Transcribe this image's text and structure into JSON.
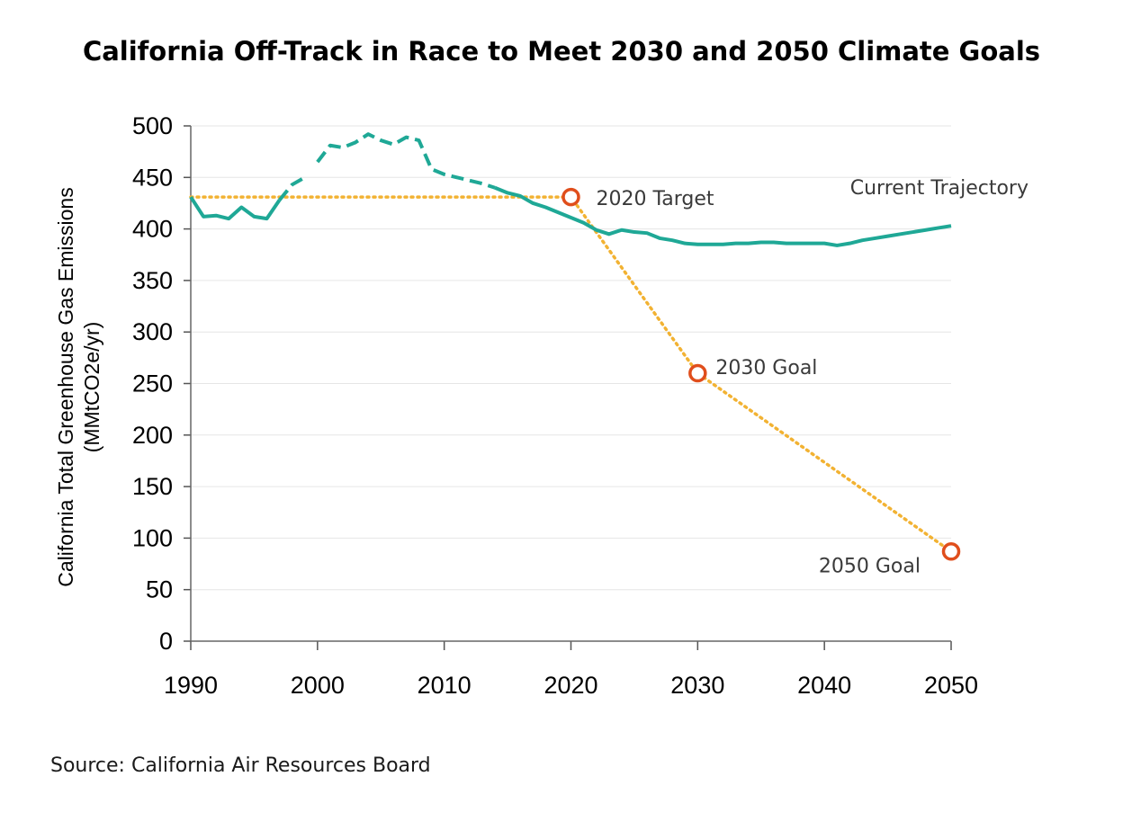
{
  "title": "California Off-Track in Race to Meet 2030 and 2050 Climate Goals",
  "source": "Source: California Air Resources Board",
  "colors": {
    "trajectory": "#1fa896",
    "goals_line": "#f2b232",
    "goal_marker": "#e04e1c",
    "grid": "#e6e6e6"
  },
  "chart_data": {
    "type": "line",
    "xlabel": "",
    "ylabel_lines": [
      "California Total Greenhouse Gas Emissions",
      "(MMtCO2e/yr)"
    ],
    "xlim": [
      1990,
      2050
    ],
    "ylim": [
      0,
      500
    ],
    "xticks": [
      1990,
      2000,
      2010,
      2020,
      2030,
      2040,
      2050
    ],
    "yticks": [
      0,
      50,
      100,
      150,
      200,
      250,
      300,
      350,
      400,
      450,
      500
    ],
    "grid": "horizontal",
    "series": [
      {
        "name": "Current Trajectory",
        "style": "solid/dashed",
        "segments": [
          {
            "style": "solid",
            "points": [
              [
                1990,
                431
              ],
              [
                1991,
                412
              ],
              [
                1992,
                413
              ],
              [
                1993,
                410
              ],
              [
                1994,
                421
              ],
              [
                1995,
                412
              ],
              [
                1996,
                410
              ],
              [
                1997,
                428
              ]
            ]
          },
          {
            "style": "dashed",
            "points": [
              [
                1997,
                428
              ],
              [
                1998,
                443
              ],
              [
                1999,
                450
              ]
            ]
          },
          {
            "style": "dashed",
            "points": [
              [
                2000,
                465
              ],
              [
                2001,
                481
              ],
              [
                2002,
                479
              ],
              [
                2003,
                484
              ],
              [
                2004,
                492
              ],
              [
                2005,
                486
              ],
              [
                2006,
                482
              ],
              [
                2007,
                489
              ],
              [
                2008,
                486
              ],
              [
                2009,
                458
              ],
              [
                2010,
                453
              ],
              [
                2011,
                450
              ],
              [
                2012,
                447
              ],
              [
                2013,
                444
              ],
              [
                2014,
                440
              ]
            ]
          },
          {
            "style": "solid",
            "points": [
              [
                2014,
                440
              ],
              [
                2015,
                435
              ],
              [
                2016,
                432
              ],
              [
                2017,
                425
              ],
              [
                2018,
                421
              ],
              [
                2019,
                416
              ],
              [
                2020,
                411
              ],
              [
                2021,
                406
              ],
              [
                2022,
                399
              ],
              [
                2023,
                395
              ],
              [
                2024,
                399
              ],
              [
                2025,
                397
              ],
              [
                2026,
                396
              ],
              [
                2027,
                391
              ],
              [
                2028,
                389
              ],
              [
                2029,
                386
              ],
              [
                2030,
                385
              ],
              [
                2031,
                385
              ],
              [
                2032,
                385
              ],
              [
                2033,
                386
              ],
              [
                2034,
                386
              ],
              [
                2035,
                387
              ],
              [
                2036,
                387
              ],
              [
                2037,
                386
              ],
              [
                2038,
                386
              ],
              [
                2039,
                386
              ],
              [
                2040,
                386
              ],
              [
                2041,
                384
              ],
              [
                2042,
                386
              ],
              [
                2043,
                389
              ],
              [
                2044,
                391
              ],
              [
                2045,
                393
              ],
              [
                2046,
                395
              ],
              [
                2047,
                397
              ],
              [
                2048,
                399
              ],
              [
                2049,
                401
              ],
              [
                2050,
                403
              ]
            ]
          }
        ]
      },
      {
        "name": "Goals",
        "style": "dotted",
        "points": [
          [
            1990,
            431
          ],
          [
            2020,
            431
          ],
          [
            2030,
            260
          ],
          [
            2050,
            87
          ]
        ]
      }
    ],
    "markers": [
      {
        "x": 2020,
        "y": 431,
        "label": "2020 Target"
      },
      {
        "x": 2030,
        "y": 260,
        "label": "2030 Goal"
      },
      {
        "x": 2050,
        "y": 87,
        "label": "2050 Goal"
      }
    ],
    "series_label": "Current Trajectory"
  }
}
